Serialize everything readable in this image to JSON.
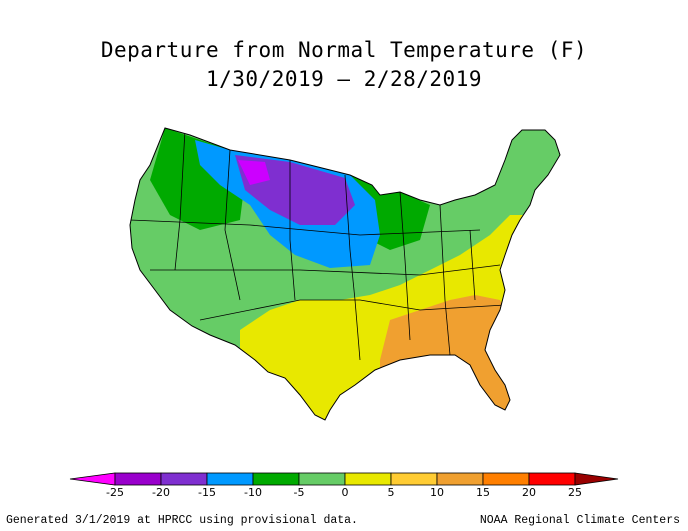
{
  "title_line1": "Departure from Normal Temperature (F)",
  "title_line2": "1/30/2019 – 2/28/2019",
  "legend": {
    "ticks": [
      "-25",
      "-20",
      "-15",
      "-10",
      "-5",
      "0",
      "5",
      "10",
      "15",
      "20",
      "25"
    ],
    "colors": [
      "#ff00ff",
      "#9900cc",
      "#7f2fd0",
      "#0099ff",
      "#00aa00",
      "#66cc66",
      "#e8e800",
      "#ffcc33",
      "#f0a030",
      "#ff7f00",
      "#ff0000",
      "#990000"
    ]
  },
  "footer_left": "Generated 3/1/2019 at HPRCC using provisional data.",
  "footer_right": "NOAA Regional Climate Centers"
}
